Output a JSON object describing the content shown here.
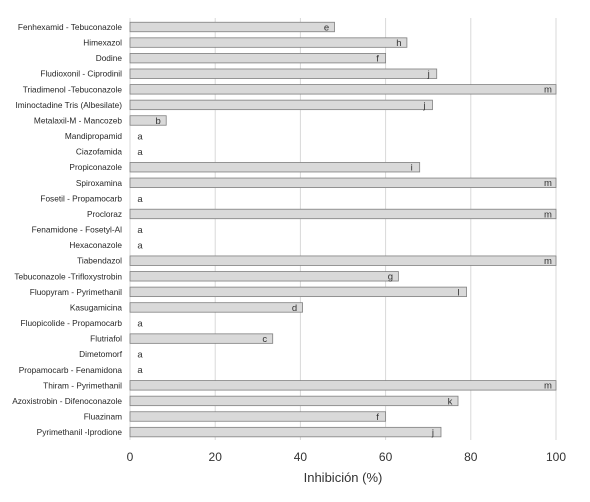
{
  "chart_data": {
    "type": "bar",
    "orientation": "horizontal",
    "xlabel": "Inhibición (%)",
    "ylabel": "",
    "xlim": [
      0,
      100
    ],
    "xticks": [
      0,
      20,
      40,
      60,
      80,
      100
    ],
    "grid": "vertical",
    "bar_color": "#d9d9d9",
    "bar_edge_color": "#7f7f7f",
    "categories": [
      "Fenhexamid - Tebuconazole",
      "Himexazol",
      "Dodine",
      "Fludioxonil - Ciprodinil",
      "Triadimenol -Tebuconazole",
      "Iminoctadine Tris (Albesilate)",
      "Metalaxil-M - Mancozeb",
      "Mandipropamid",
      "Ciazofamida",
      "Propiconazole",
      "Spiroxamina",
      "Fosetil - Propamocarb",
      "Procloraz",
      "Fenamidone - Fosetyl-Al",
      "Hexaconazole",
      "Tiabendazol",
      "Tebuconazole -Trifloxystrobin",
      "Fluopyram - Pyrimethanil",
      "Kasugamicina",
      "Fluopicolide - Propamocarb",
      "Flutriafol",
      "Dimetomorf",
      "Propamocarb - Fenamidona",
      "Thiram - Pyrimethanil",
      "Azoxistrobin - Difenoconazole",
      "Fluazinam",
      "Pyrimethanil -Iprodione"
    ],
    "values": [
      48,
      65,
      60,
      72,
      100,
      71,
      8.5,
      0,
      0,
      68,
      100,
      0,
      100,
      0,
      0,
      100,
      63,
      79,
      40.5,
      0,
      33.5,
      0,
      0,
      100,
      77,
      60,
      73
    ],
    "letters": [
      "e",
      "h",
      "f",
      "j",
      "m",
      "j",
      "b",
      "a",
      "a",
      "i",
      "m",
      "a",
      "m",
      "a",
      "a",
      "m",
      "g",
      "l",
      "d",
      "a",
      "c",
      "a",
      "a",
      "m",
      "k",
      "f",
      "j"
    ]
  }
}
